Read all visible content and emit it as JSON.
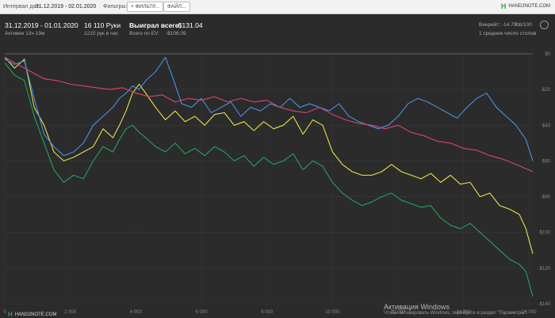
{
  "toolbar": {
    "interval_label": "Интервал дат:",
    "interval_value": "31.12.2019 - 02.01.2020",
    "filters_label": "Фильтры:",
    "filter_button": "+ ФИЛЬТР...",
    "file_button": "ФАЙЛ...",
    "brand": "HAND2NOTE.COM"
  },
  "stats": {
    "date_range": "31.12.2019 - 01.01.2020",
    "active": "Активен 13ч 19м",
    "hands": "16 110 Руки",
    "hands_per_hour": "1210 рук в час",
    "won_label": "Выиграл всего:",
    "won_value": "-$131.04",
    "ev_label": "Всего по EV:",
    "ev_value": "-$106.09",
    "winrate_label": "Винрейт:",
    "winrate_value": "-14.79",
    "winrate_unit": "bb/100",
    "tables": "1 среднее число столов"
  },
  "chart_data": {
    "type": "line",
    "x_ticks": [
      "0",
      "2 000",
      "4 000",
      "6 000",
      "8 000",
      "10 000",
      "12 000",
      "14 000",
      "16 000"
    ],
    "y_ticks": [
      "$0",
      "-$20",
      "-$40",
      "-$60",
      "-$80",
      "-$100",
      "-$120",
      "-$140"
    ],
    "xlim": [
      0,
      16110
    ],
    "ylim": [
      -140,
      0
    ],
    "grid": true,
    "series": [
      {
        "color": "#e8e04a",
        "points": [
          [
            0,
            -2
          ],
          [
            300,
            -8
          ],
          [
            600,
            -3
          ],
          [
            900,
            -30
          ],
          [
            1200,
            -40
          ],
          [
            1500,
            -55
          ],
          [
            1800,
            -60
          ],
          [
            2100,
            -58
          ],
          [
            2400,
            -55
          ],
          [
            2700,
            -52
          ],
          [
            3000,
            -42
          ],
          [
            3300,
            -47
          ],
          [
            3500,
            -40
          ],
          [
            3700,
            -32
          ],
          [
            3900,
            -22
          ],
          [
            4100,
            -17
          ],
          [
            4300,
            -22
          ],
          [
            4600,
            -30
          ],
          [
            4900,
            -37
          ],
          [
            5200,
            -32
          ],
          [
            5500,
            -38
          ],
          [
            5800,
            -35
          ],
          [
            6100,
            -40
          ],
          [
            6400,
            -34
          ],
          [
            6700,
            -33
          ],
          [
            7000,
            -40
          ],
          [
            7300,
            -38
          ],
          [
            7600,
            -43
          ],
          [
            7900,
            -38
          ],
          [
            8200,
            -42
          ],
          [
            8500,
            -40
          ],
          [
            8800,
            -35
          ],
          [
            9100,
            -45
          ],
          [
            9400,
            -37
          ],
          [
            9700,
            -40
          ],
          [
            10000,
            -55
          ],
          [
            10300,
            -62
          ],
          [
            10600,
            -66
          ],
          [
            10900,
            -68
          ],
          [
            11200,
            -68
          ],
          [
            11500,
            -66
          ],
          [
            11800,
            -62
          ],
          [
            12100,
            -66
          ],
          [
            12400,
            -68
          ],
          [
            12700,
            -70
          ],
          [
            13000,
            -67
          ],
          [
            13300,
            -72
          ],
          [
            13600,
            -68
          ],
          [
            13900,
            -73
          ],
          [
            14200,
            -72
          ],
          [
            14500,
            -80
          ],
          [
            14800,
            -78
          ],
          [
            15100,
            -85
          ],
          [
            15400,
            -87
          ],
          [
            15700,
            -90
          ],
          [
            15900,
            -98
          ],
          [
            16110,
            -112
          ]
        ]
      },
      {
        "color": "#4a90e0",
        "points": [
          [
            0,
            -3
          ],
          [
            300,
            -6
          ],
          [
            600,
            -4
          ],
          [
            900,
            -25
          ],
          [
            1200,
            -45
          ],
          [
            1500,
            -52
          ],
          [
            1800,
            -57
          ],
          [
            2100,
            -55
          ],
          [
            2400,
            -50
          ],
          [
            2700,
            -40
          ],
          [
            3000,
            -35
          ],
          [
            3300,
            -30
          ],
          [
            3500,
            -25
          ],
          [
            3700,
            -22
          ],
          [
            3900,
            -18
          ],
          [
            4100,
            -20
          ],
          [
            4300,
            -15
          ],
          [
            4600,
            -10
          ],
          [
            4900,
            -2
          ],
          [
            5100,
            -12
          ],
          [
            5400,
            -28
          ],
          [
            5700,
            -30
          ],
          [
            6000,
            -25
          ],
          [
            6300,
            -33
          ],
          [
            6600,
            -30
          ],
          [
            6900,
            -27
          ],
          [
            7200,
            -35
          ],
          [
            7500,
            -30
          ],
          [
            7800,
            -32
          ],
          [
            8100,
            -28
          ],
          [
            8400,
            -30
          ],
          [
            8700,
            -25
          ],
          [
            9000,
            -30
          ],
          [
            9300,
            -28
          ],
          [
            9600,
            -30
          ],
          [
            9900,
            -32
          ],
          [
            10200,
            -28
          ],
          [
            10500,
            -35
          ],
          [
            10800,
            -38
          ],
          [
            11100,
            -40
          ],
          [
            11400,
            -42
          ],
          [
            11700,
            -40
          ],
          [
            12000,
            -35
          ],
          [
            12300,
            -28
          ],
          [
            12600,
            -25
          ],
          [
            12900,
            -27
          ],
          [
            13200,
            -30
          ],
          [
            13500,
            -33
          ],
          [
            13800,
            -36
          ],
          [
            14100,
            -30
          ],
          [
            14400,
            -25
          ],
          [
            14700,
            -22
          ],
          [
            15000,
            -30
          ],
          [
            15300,
            -35
          ],
          [
            15600,
            -40
          ],
          [
            15900,
            -48
          ],
          [
            16110,
            -60
          ]
        ]
      },
      {
        "color": "#d9456e",
        "points": [
          [
            0,
            -2
          ],
          [
            400,
            -6
          ],
          [
            800,
            -10
          ],
          [
            1200,
            -14
          ],
          [
            1600,
            -15
          ],
          [
            2000,
            -17
          ],
          [
            2400,
            -18
          ],
          [
            2800,
            -19
          ],
          [
            3200,
            -20
          ],
          [
            3600,
            -19
          ],
          [
            4000,
            -22
          ],
          [
            4400,
            -24
          ],
          [
            4800,
            -23
          ],
          [
            5200,
            -27
          ],
          [
            5600,
            -25
          ],
          [
            6000,
            -26
          ],
          [
            6400,
            -24
          ],
          [
            6800,
            -27
          ],
          [
            7200,
            -25
          ],
          [
            7600,
            -27
          ],
          [
            8000,
            -26
          ],
          [
            8400,
            -30
          ],
          [
            8800,
            -32
          ],
          [
            9200,
            -33
          ],
          [
            9600,
            -30
          ],
          [
            10000,
            -34
          ],
          [
            10400,
            -37
          ],
          [
            10800,
            -39
          ],
          [
            11200,
            -40
          ],
          [
            11600,
            -42
          ],
          [
            12000,
            -40
          ],
          [
            12400,
            -44
          ],
          [
            12800,
            -46
          ],
          [
            13200,
            -49
          ],
          [
            13600,
            -50
          ],
          [
            14000,
            -53
          ],
          [
            14400,
            -54
          ],
          [
            14800,
            -57
          ],
          [
            15200,
            -59
          ],
          [
            15600,
            -62
          ],
          [
            16110,
            -66
          ]
        ]
      },
      {
        "color": "#21a35e",
        "points": [
          [
            0,
            -5
          ],
          [
            300,
            -12
          ],
          [
            600,
            -15
          ],
          [
            900,
            -35
          ],
          [
            1200,
            -50
          ],
          [
            1500,
            -65
          ],
          [
            1800,
            -72
          ],
          [
            2100,
            -68
          ],
          [
            2400,
            -70
          ],
          [
            2700,
            -60
          ],
          [
            3000,
            -52
          ],
          [
            3300,
            -55
          ],
          [
            3500,
            -48
          ],
          [
            3700,
            -42
          ],
          [
            3900,
            -40
          ],
          [
            4100,
            -44
          ],
          [
            4300,
            -47
          ],
          [
            4600,
            -52
          ],
          [
            4900,
            -55
          ],
          [
            5200,
            -50
          ],
          [
            5500,
            -56
          ],
          [
            5800,
            -53
          ],
          [
            6100,
            -57
          ],
          [
            6400,
            -52
          ],
          [
            6700,
            -55
          ],
          [
            7000,
            -60
          ],
          [
            7300,
            -57
          ],
          [
            7600,
            -63
          ],
          [
            7900,
            -58
          ],
          [
            8200,
            -62
          ],
          [
            8500,
            -60
          ],
          [
            8800,
            -56
          ],
          [
            9100,
            -65
          ],
          [
            9400,
            -60
          ],
          [
            9700,
            -63
          ],
          [
            10000,
            -72
          ],
          [
            10300,
            -78
          ],
          [
            10600,
            -82
          ],
          [
            10900,
            -85
          ],
          [
            11200,
            -83
          ],
          [
            11500,
            -80
          ],
          [
            11800,
            -78
          ],
          [
            12100,
            -82
          ],
          [
            12400,
            -84
          ],
          [
            12700,
            -86
          ],
          [
            13000,
            -85
          ],
          [
            13300,
            -92
          ],
          [
            13600,
            -96
          ],
          [
            13900,
            -98
          ],
          [
            14200,
            -95
          ],
          [
            14500,
            -100
          ],
          [
            14800,
            -105
          ],
          [
            15100,
            -110
          ],
          [
            15400,
            -115
          ],
          [
            15700,
            -118
          ],
          [
            15900,
            -122
          ],
          [
            16110,
            -136
          ]
        ]
      }
    ]
  },
  "watermark": {
    "title": "Активация Windows",
    "subtitle": "Чтобы активировать Windows, перейдите в раздел \"Параметры\"."
  }
}
